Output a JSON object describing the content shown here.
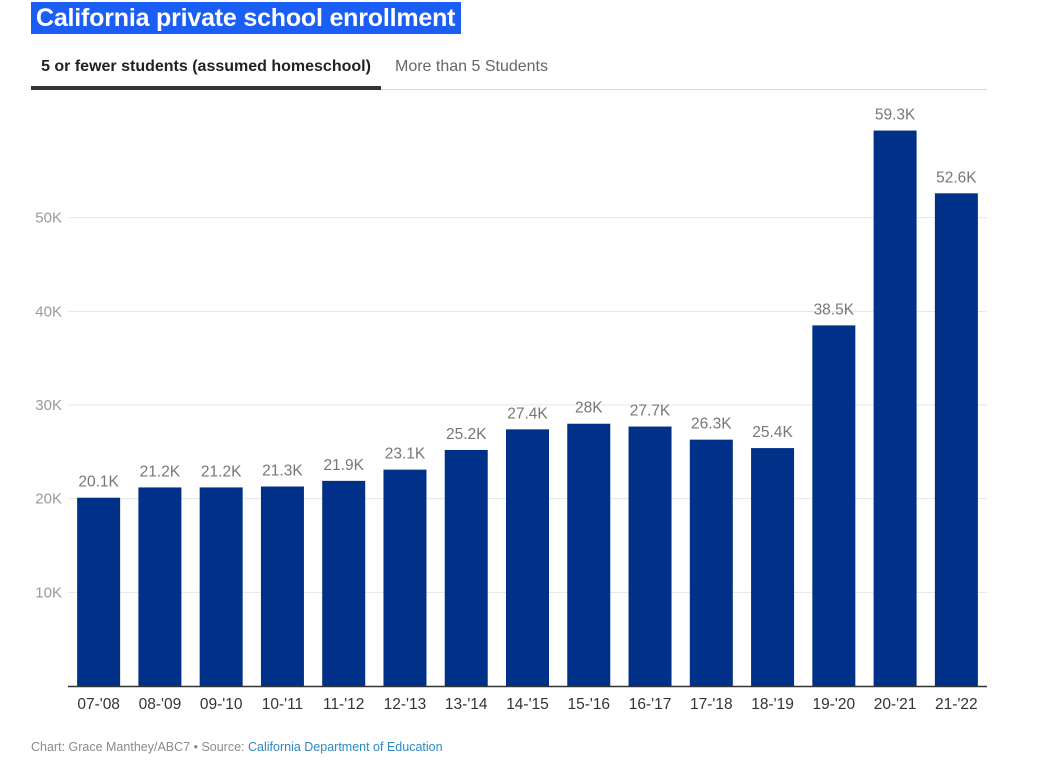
{
  "title": "California private school enrollment",
  "tabs": [
    {
      "label": "5 or fewer students (assumed homeschool)",
      "active": true
    },
    {
      "label": "More than 5 Students",
      "active": false
    }
  ],
  "chart_data": {
    "type": "bar",
    "categories": [
      "07-'08",
      "08-'09",
      "09-'10",
      "10-'11",
      "11-'12",
      "12-'13",
      "13-'14",
      "14-'15",
      "15-'16",
      "16-'17",
      "17-'18",
      "18-'19",
      "19-'20",
      "20-'21",
      "21-'22"
    ],
    "values": [
      20100,
      21200,
      21200,
      21300,
      21900,
      23100,
      25200,
      27400,
      28000,
      27700,
      26300,
      25400,
      38500,
      59300,
      52600
    ],
    "value_labels": [
      "20.1K",
      "21.2K",
      "21.2K",
      "21.3K",
      "21.9K",
      "23.1K",
      "25.2K",
      "27.4K",
      "28K",
      "27.7K",
      "26.3K",
      "25.4K",
      "38.5K",
      "59.3K",
      "52.6K"
    ],
    "yticks": [
      10000,
      20000,
      30000,
      40000,
      50000
    ],
    "ytick_labels": [
      "10K",
      "20K",
      "30K",
      "40K",
      "50K"
    ],
    "ylim": [
      0,
      60000
    ],
    "grid": true,
    "bar_color": "#003087",
    "title": "",
    "xlabel": "",
    "ylabel": ""
  },
  "footer": {
    "credit": "Chart: Grace Manthey/ABC7",
    "separator": " • ",
    "source_prefix": "Source: ",
    "source_link": "California Department of Education"
  },
  "colors": {
    "title_bg": "#1a5ef6",
    "bar": "#003087",
    "link": "#2b8ac4"
  }
}
